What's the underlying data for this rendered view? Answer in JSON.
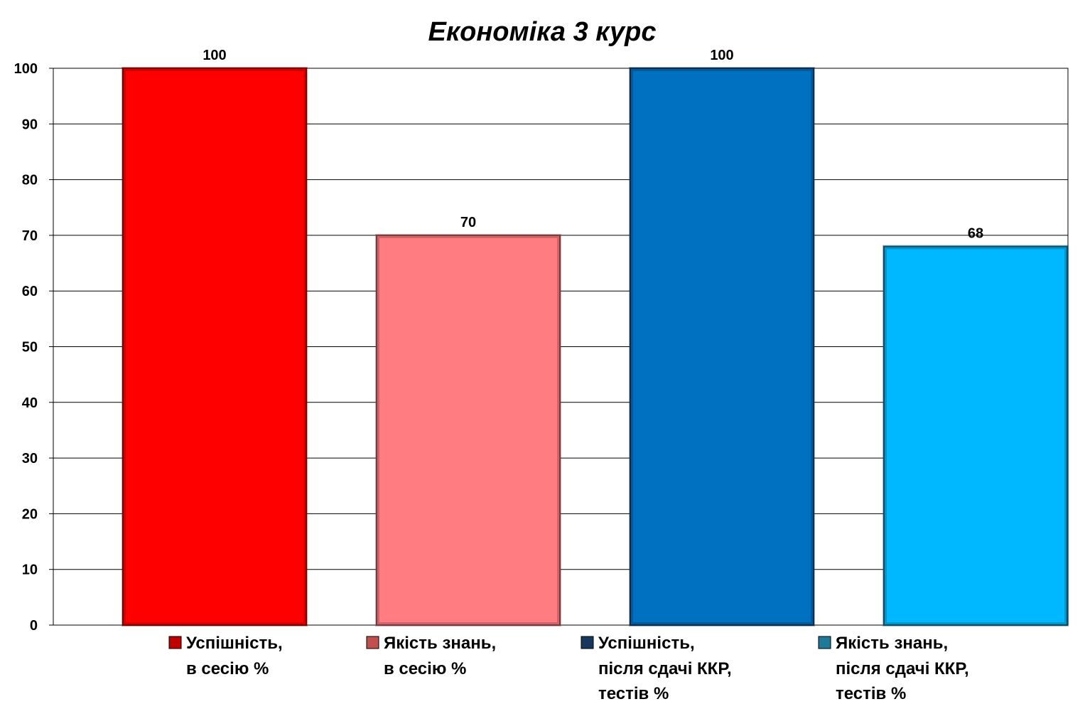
{
  "chart_data": {
    "type": "bar",
    "title": "Економіка 3 курс",
    "xlabel": "",
    "ylabel": "",
    "ylim": [
      0,
      100
    ],
    "yticks": [
      "0",
      "10",
      "20",
      "30",
      "40",
      "50",
      "60",
      "70",
      "80",
      "90",
      "100"
    ],
    "grid": true,
    "legend_position": "bottom",
    "bars": [
      {
        "value": 100,
        "value_label": "100",
        "color": "#ff0000",
        "edge_color": "#7a0000",
        "legend_lines": [
          "Успішність,",
          "в сесію %"
        ],
        "legend_swatch": "#c00000"
      },
      {
        "value": 70,
        "value_label": "70",
        "color": "#ff7c80",
        "edge_color": "#7a3a3c",
        "legend_lines": [
          "Якість знань,",
          "в сесію %"
        ],
        "legend_swatch": "#c0504d"
      },
      {
        "value": 100,
        "value_label": "100",
        "color": "#0070c0",
        "edge_color": "#0b2f4f",
        "legend_lines": [
          "Успішність,",
          "після сдачі ККР,",
          "тестів %"
        ],
        "legend_swatch": "#17375e"
      },
      {
        "value": 68,
        "value_label": "68",
        "color": "#00b8ff",
        "edge_color": "#0b4f66",
        "legend_lines": [
          "Якість знань,",
          "після сдачі ККР,",
          "тестів %"
        ],
        "legend_swatch": "#1f7a99"
      }
    ]
  }
}
